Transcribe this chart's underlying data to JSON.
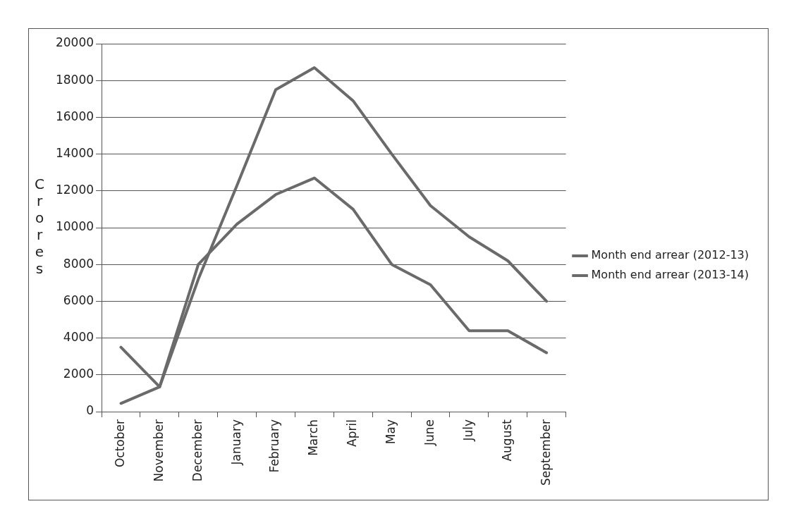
{
  "chart_data": {
    "type": "line",
    "ylabel": "Crores",
    "categories": [
      "October",
      "November",
      "December",
      "January",
      "February",
      "March",
      "April",
      "May",
      "June",
      "July",
      "August",
      "September"
    ],
    "series": [
      {
        "name": "Month end arrear (2012-13)",
        "color": "#6a6a6a",
        "values": [
          3500,
          1350,
          8000,
          10200,
          11800,
          12700,
          11000,
          8000,
          6900,
          4400,
          4400,
          3200
        ]
      },
      {
        "name": "Month end arrear (2013-14)",
        "color": "#6a6a6a",
        "values": [
          450,
          1350,
          7200,
          12300,
          17500,
          18700,
          16900,
          14000,
          11200,
          9500,
          8200,
          6000
        ]
      }
    ],
    "ylim": [
      0,
      20000
    ],
    "yticks": [
      0,
      2000,
      4000,
      6000,
      8000,
      10000,
      12000,
      14000,
      16000,
      18000,
      20000
    ],
    "grid": "y",
    "legend": "right",
    "marker": "none",
    "line_style": "solid"
  }
}
